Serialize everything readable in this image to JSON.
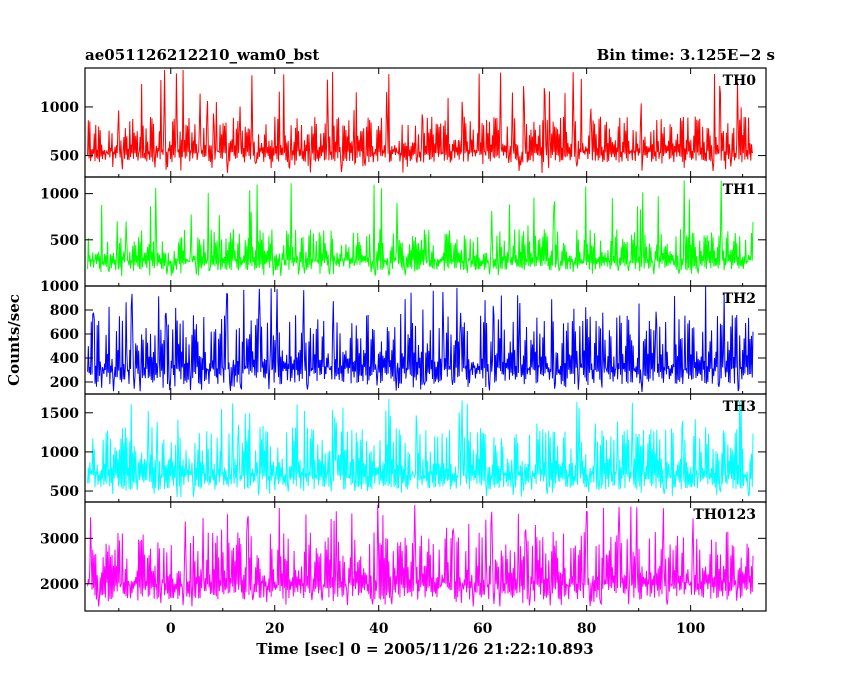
{
  "chart_data": {
    "type": "line",
    "title_left": "ae051126212210_wam0_bst",
    "title_right": "Bin time: 3.125E−2 s",
    "xlabel": "Time [sec] 0 = 2005/11/26 21:22:10.893",
    "ylabel": "Counts/sec",
    "xlim": [
      -16.5,
      114.5
    ],
    "data_x_range": [
      -16,
      112
    ],
    "x_ticks": [
      0,
      20,
      40,
      60,
      80,
      100
    ],
    "x_tick_labels": [
      "0",
      "20",
      "40",
      "60",
      "80",
      "100"
    ],
    "panels": [
      {
        "name": "TH0",
        "color": "#ff0000",
        "ylim": [
          280,
          1400
        ],
        "y_ticks": [
          500,
          1000
        ],
        "y_tick_labels": [
          "500",
          "1000"
        ],
        "typical_low": 430,
        "typical_high": 900,
        "peak_min": 310,
        "peak_max": 1400
      },
      {
        "name": "TH1",
        "color": "#00ff00",
        "ylim": [
          0,
          1180
        ],
        "y_ticks": [
          500,
          1000
        ],
        "y_tick_labels": [
          "500",
          "1000"
        ],
        "typical_low": 170,
        "typical_high": 620,
        "peak_min": 110,
        "peak_max": 1150
      },
      {
        "name": "TH2",
        "color": "#0000ff",
        "ylim": [
          100,
          1000
        ],
        "y_ticks": [
          200,
          400,
          600,
          800,
          1000
        ],
        "y_tick_labels": [
          "200",
          "400",
          "600",
          "800",
          "1000"
        ],
        "typical_low": 180,
        "typical_high": 760,
        "peak_min": 115,
        "peak_max": 1000
      },
      {
        "name": "TH3",
        "color": "#00ffff",
        "ylim": [
          360,
          1740
        ],
        "y_ticks": [
          500,
          1000,
          1500
        ],
        "y_tick_labels": [
          "500",
          "1000",
          "1500"
        ],
        "typical_low": 520,
        "typical_high": 1320,
        "peak_min": 420,
        "peak_max": 1680
      },
      {
        "name": "TH0123",
        "color": "#ff00ff",
        "ylim": [
          1400,
          3800
        ],
        "y_ticks": [
          2000,
          3000
        ],
        "y_tick_labels": [
          "2000",
          "3000"
        ],
        "typical_low": 1650,
        "typical_high": 3150,
        "peak_min": 1480,
        "peak_max": 3750
      }
    ]
  }
}
